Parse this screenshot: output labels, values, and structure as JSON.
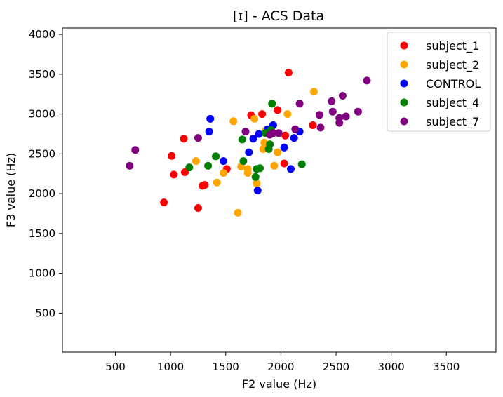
{
  "chart_data": {
    "type": "scatter",
    "title": "[ɪ] - ACS Data",
    "xlabel": "F2 value (Hz)",
    "ylabel": "F3 value (Hz)",
    "xlim": [
      20,
      3950
    ],
    "ylim": [
      10,
      4080
    ],
    "xticks": [
      500,
      1000,
      1500,
      2000,
      2500,
      3000,
      3500
    ],
    "yticks": [
      500,
      1000,
      1500,
      2000,
      2500,
      3000,
      3500,
      4000
    ],
    "grid": false,
    "legend_position": "top-right",
    "series": [
      {
        "name": "subject_1",
        "color": "#ff0000",
        "points": [
          [
            940,
            1890
          ],
          [
            1010,
            2475
          ],
          [
            1030,
            2240
          ],
          [
            1120,
            2690
          ],
          [
            1130,
            2270
          ],
          [
            1250,
            1820
          ],
          [
            1290,
            2100
          ],
          [
            1310,
            2110
          ],
          [
            1510,
            2310
          ],
          [
            1730,
            2985
          ],
          [
            1830,
            3000
          ],
          [
            1970,
            3050
          ],
          [
            2030,
            2380
          ],
          [
            2040,
            2730
          ],
          [
            2070,
            3520
          ],
          [
            2290,
            2860
          ]
        ]
      },
      {
        "name": "subject_2",
        "color": "#ffa500",
        "points": [
          [
            1230,
            2410
          ],
          [
            1420,
            2140
          ],
          [
            1480,
            2260
          ],
          [
            1570,
            2910
          ],
          [
            1610,
            1760
          ],
          [
            1640,
            2340
          ],
          [
            1700,
            2310
          ],
          [
            1700,
            2260
          ],
          [
            1760,
            2940
          ],
          [
            1780,
            2130
          ],
          [
            1840,
            2560
          ],
          [
            1850,
            2640
          ],
          [
            1860,
            2790
          ],
          [
            1940,
            2350
          ],
          [
            1970,
            2520
          ],
          [
            2060,
            3000
          ],
          [
            2300,
            3280
          ]
        ]
      },
      {
        "name": "CONTROL",
        "color": "#0000ff",
        "points": [
          [
            1350,
            2780
          ],
          [
            1360,
            2940
          ],
          [
            1480,
            2410
          ],
          [
            1710,
            2520
          ],
          [
            1750,
            2690
          ],
          [
            1790,
            2040
          ],
          [
            1800,
            2750
          ],
          [
            1880,
            2810
          ],
          [
            1930,
            2860
          ],
          [
            2030,
            2580
          ],
          [
            2090,
            2310
          ],
          [
            2120,
            2700
          ],
          [
            2170,
            2780
          ]
        ]
      },
      {
        "name": "subject_4",
        "color": "#008000",
        "points": [
          [
            1170,
            2330
          ],
          [
            1340,
            2350
          ],
          [
            1410,
            2470
          ],
          [
            1650,
            2680
          ],
          [
            1660,
            2410
          ],
          [
            1770,
            2210
          ],
          [
            1780,
            2310
          ],
          [
            1810,
            2320
          ],
          [
            1860,
            2760
          ],
          [
            1890,
            2560
          ],
          [
            1900,
            2620
          ],
          [
            1910,
            2800
          ],
          [
            1920,
            3130
          ],
          [
            2190,
            2370
          ]
        ]
      },
      {
        "name": "subject_7",
        "color": "#800080",
        "points": [
          [
            630,
            2350
          ],
          [
            680,
            2550
          ],
          [
            1250,
            2700
          ],
          [
            1680,
            2780
          ],
          [
            1900,
            2740
          ],
          [
            1930,
            2760
          ],
          [
            1980,
            2760
          ],
          [
            2130,
            2810
          ],
          [
            2170,
            3130
          ],
          [
            2350,
            2990
          ],
          [
            2360,
            2830
          ],
          [
            2460,
            3160
          ],
          [
            2470,
            3030
          ],
          [
            2530,
            2890
          ],
          [
            2530,
            2950
          ],
          [
            2560,
            3230
          ],
          [
            2590,
            2970
          ],
          [
            2700,
            3030
          ],
          [
            2780,
            3420
          ]
        ]
      }
    ]
  }
}
